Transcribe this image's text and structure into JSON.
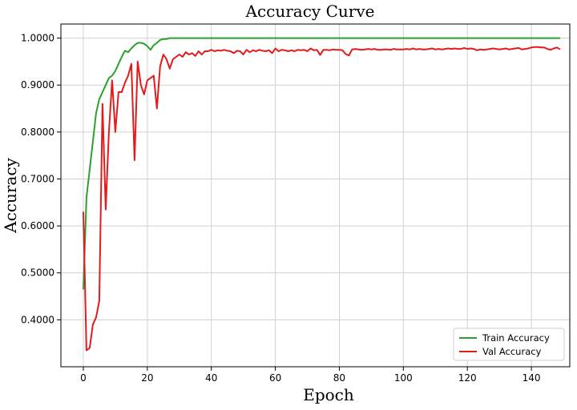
{
  "chart_data": {
    "type": "line",
    "title": "Accuracy Curve",
    "xlabel": "Epoch",
    "ylabel": "Accuracy",
    "xlim": [
      -7,
      152
    ],
    "ylim": [
      0.3,
      1.03
    ],
    "xticks": [
      0,
      20,
      40,
      60,
      80,
      100,
      120,
      140
    ],
    "xtick_labels": [
      "0",
      "20",
      "40",
      "60",
      "80",
      "100",
      "120",
      "140"
    ],
    "yticks": [
      0.4,
      0.5,
      0.6,
      0.7,
      0.8,
      0.9,
      1.0
    ],
    "ytick_labels": [
      "0.4000",
      "0.5000",
      "0.6000",
      "0.7000",
      "0.8000",
      "0.9000",
      "1.0000"
    ],
    "grid": true,
    "legend_position": "bottom-right",
    "series": [
      {
        "name": "Train Accuracy",
        "color": "#2ca02c",
        "x": [
          0,
          1,
          2,
          3,
          4,
          5,
          6,
          7,
          8,
          9,
          10,
          11,
          12,
          13,
          14,
          15,
          16,
          17,
          18,
          19,
          20,
          21,
          22,
          23,
          24,
          25,
          26,
          27,
          28,
          30,
          35,
          40,
          50,
          60,
          80,
          100,
          120,
          140,
          149
        ],
        "y": [
          0.465,
          0.66,
          0.72,
          0.78,
          0.84,
          0.87,
          0.885,
          0.9,
          0.915,
          0.92,
          0.93,
          0.945,
          0.96,
          0.973,
          0.97,
          0.978,
          0.985,
          0.99,
          0.99,
          0.988,
          0.983,
          0.975,
          0.985,
          0.99,
          0.996,
          0.998,
          0.998,
          1.0,
          1.0,
          1.0,
          1.0,
          1.0,
          1.0,
          1.0,
          1.0,
          1.0,
          1.0,
          1.0,
          1.0
        ]
      },
      {
        "name": "Val Accuracy",
        "color": "#e41a1c",
        "x": [
          0,
          1,
          2,
          3,
          4,
          5,
          6,
          7,
          8,
          9,
          10,
          11,
          12,
          13,
          14,
          15,
          16,
          17,
          18,
          19,
          20,
          21,
          22,
          23,
          24,
          25,
          26,
          27,
          28,
          29,
          30,
          31,
          32,
          33,
          34,
          35,
          36,
          37,
          38,
          39,
          40,
          41,
          42,
          43,
          44,
          45,
          46,
          47,
          48,
          49,
          50,
          51,
          52,
          53,
          54,
          55,
          56,
          57,
          58,
          59,
          60,
          61,
          62,
          63,
          64,
          65,
          66,
          67,
          68,
          69,
          70,
          71,
          72,
          73,
          74,
          75,
          76,
          77,
          78,
          79,
          80,
          81,
          82,
          83,
          84,
          85,
          86,
          87,
          88,
          89,
          90,
          91,
          92,
          93,
          94,
          95,
          96,
          97,
          98,
          99,
          100,
          101,
          102,
          103,
          104,
          105,
          106,
          107,
          108,
          109,
          110,
          111,
          112,
          113,
          114,
          115,
          116,
          117,
          118,
          119,
          120,
          121,
          122,
          123,
          124,
          125,
          126,
          127,
          128,
          129,
          130,
          131,
          132,
          133,
          134,
          135,
          136,
          137,
          138,
          139,
          140,
          141,
          142,
          143,
          144,
          145,
          146,
          147,
          148,
          149
        ],
        "y": [
          0.63,
          0.335,
          0.34,
          0.39,
          0.405,
          0.44,
          0.86,
          0.635,
          0.8,
          0.91,
          0.8,
          0.885,
          0.885,
          0.905,
          0.92,
          0.945,
          0.74,
          0.95,
          0.9,
          0.88,
          0.91,
          0.915,
          0.92,
          0.85,
          0.94,
          0.965,
          0.955,
          0.935,
          0.955,
          0.96,
          0.965,
          0.96,
          0.97,
          0.965,
          0.968,
          0.962,
          0.972,
          0.965,
          0.972,
          0.972,
          0.975,
          0.972,
          0.974,
          0.973,
          0.975,
          0.973,
          0.972,
          0.968,
          0.973,
          0.972,
          0.965,
          0.975,
          0.97,
          0.974,
          0.972,
          0.975,
          0.973,
          0.972,
          0.974,
          0.968,
          0.978,
          0.972,
          0.975,
          0.974,
          0.972,
          0.974,
          0.972,
          0.975,
          0.974,
          0.975,
          0.972,
          0.978,
          0.974,
          0.975,
          0.964,
          0.975,
          0.975,
          0.974,
          0.976,
          0.975,
          0.975,
          0.974,
          0.966,
          0.963,
          0.976,
          0.977,
          0.976,
          0.975,
          0.976,
          0.977,
          0.976,
          0.977,
          0.975,
          0.975,
          0.976,
          0.976,
          0.975,
          0.977,
          0.976,
          0.976,
          0.976,
          0.977,
          0.976,
          0.978,
          0.976,
          0.977,
          0.976,
          0.976,
          0.977,
          0.978,
          0.976,
          0.977,
          0.976,
          0.977,
          0.978,
          0.977,
          0.978,
          0.977,
          0.977,
          0.979,
          0.977,
          0.978,
          0.977,
          0.974,
          0.976,
          0.975,
          0.976,
          0.977,
          0.978,
          0.977,
          0.976,
          0.977,
          0.978,
          0.976,
          0.977,
          0.978,
          0.979,
          0.976,
          0.977,
          0.978,
          0.98,
          0.981,
          0.981,
          0.98,
          0.98,
          0.977,
          0.975,
          0.978,
          0.98,
          0.976
        ]
      }
    ]
  }
}
